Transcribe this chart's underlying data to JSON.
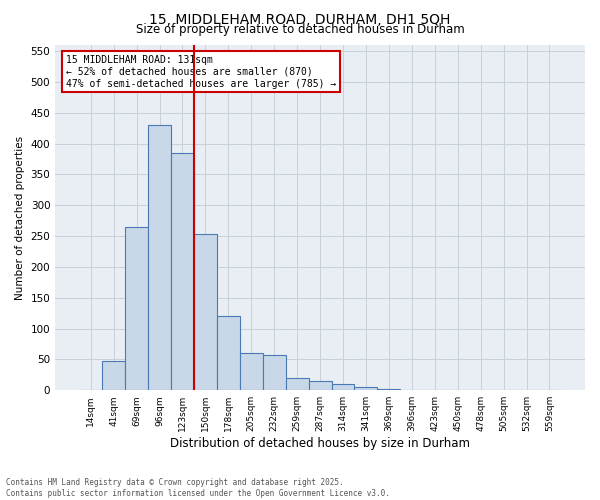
{
  "title1": "15, MIDDLEHAM ROAD, DURHAM, DH1 5QH",
  "title2": "Size of property relative to detached houses in Durham",
  "xlabel": "Distribution of detached houses by size in Durham",
  "ylabel": "Number of detached properties",
  "annotation_line1": "15 MIDDLEHAM ROAD: 131sqm",
  "annotation_line2": "← 52% of detached houses are smaller (870)",
  "annotation_line3": "47% of semi-detached houses are larger (785) →",
  "categories": [
    "14sqm",
    "41sqm",
    "69sqm",
    "96sqm",
    "123sqm",
    "150sqm",
    "178sqm",
    "205sqm",
    "232sqm",
    "259sqm",
    "287sqm",
    "314sqm",
    "341sqm",
    "369sqm",
    "396sqm",
    "423sqm",
    "450sqm",
    "478sqm",
    "505sqm",
    "532sqm",
    "559sqm"
  ],
  "values": [
    0,
    47,
    265,
    430,
    385,
    253,
    120,
    60,
    57,
    20,
    15,
    10,
    5,
    2,
    0,
    0,
    0,
    0,
    1,
    0,
    0
  ],
  "bar_color": "#c8d8e8",
  "bar_edge_color": "#4a7ab5",
  "bar_edge_width": 0.8,
  "red_line_color": "#cc0000",
  "annotation_box_color": "#cc0000",
  "grid_color": "#c8d0d8",
  "background_color": "#e8eef4",
  "ylim": [
    0,
    560
  ],
  "yticks": [
    0,
    50,
    100,
    150,
    200,
    250,
    300,
    350,
    400,
    450,
    500,
    550
  ],
  "footer_line1": "Contains HM Land Registry data © Crown copyright and database right 2025.",
  "footer_line2": "Contains public sector information licensed under the Open Government Licence v3.0."
}
